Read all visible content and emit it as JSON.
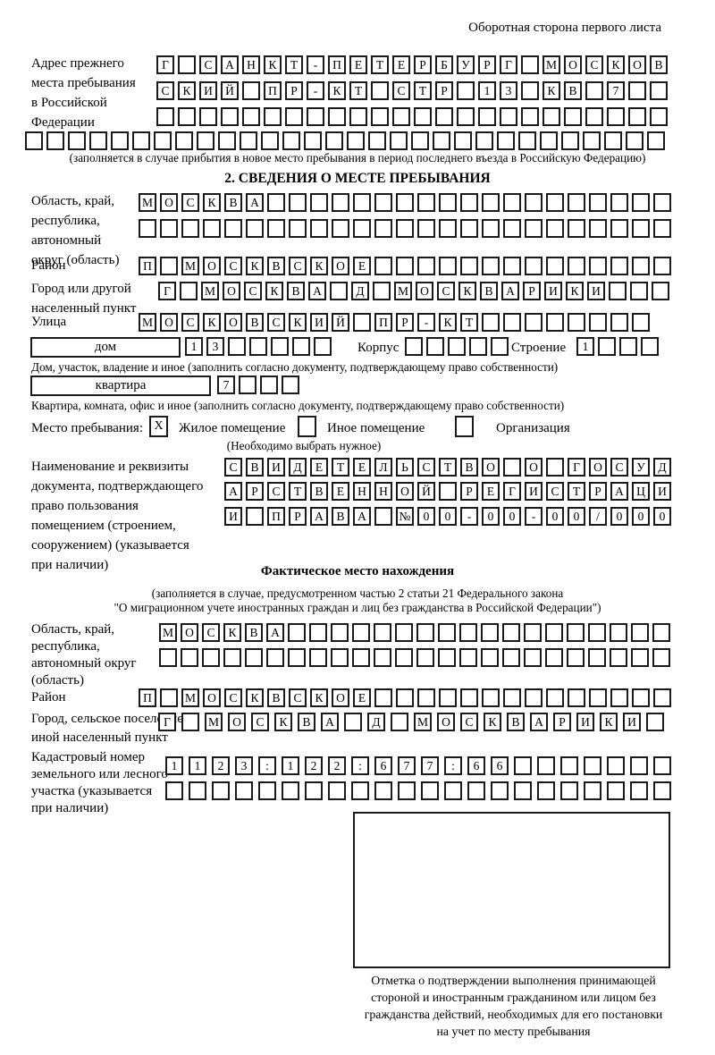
{
  "colors": {
    "ink": "#000000",
    "box_border": "#1a1a1a",
    "background": "#ffffff"
  },
  "page": {
    "header_note": "Оборотная сторона первого листа"
  },
  "prev_address": {
    "label_lines": [
      "Адрес прежнего",
      "места пребывания",
      "в Российской",
      "Федерации"
    ],
    "rows": [
      "Г САНКТ-ПЕТЕРБУРГ МОСКОВ",
      "СКИЙ ПР-КТ СТР 13 КВ 7",
      "",
      ""
    ],
    "caption": "(заполняется в случае прибытия в новое место пребывания в период последнего въезда в Российскую Федерацию)"
  },
  "section2": {
    "title": "2. СВЕДЕНИЯ О МЕСТЕ ПРЕБЫВАНИЯ",
    "region": {
      "label_lines": [
        "Область, край,",
        "республика,",
        "автономный",
        "округ (область)"
      ],
      "rows": [
        "МОСКВА",
        ""
      ]
    },
    "district": {
      "label": "Район",
      "row": "П МОСКВСКОЕ"
    },
    "city": {
      "label_lines": [
        "Город или другой",
        "населенный пункт"
      ],
      "row": "Г МОСКВА Д МОСКВАРИКИ"
    },
    "street": {
      "label": "Улица",
      "row": "МОСКОВСКИЙ ПР-КТ"
    },
    "house": {
      "box_label": "дом",
      "number_cells": "13",
      "korpus_label": "Корпус",
      "korpus_cells": "",
      "stroenie_label": "Строение",
      "stroenie_cells": "1"
    },
    "house_caption": "Дом, участок, владение и иное (заполнить согласно документу, подтверждающему право собственности)",
    "apartment": {
      "box_label": "квартира",
      "cells": "7"
    },
    "apartment_caption": "Квартира, комната, офис и иное (заполнить согласно документу, подтверждающему право собственности)",
    "stay_type": {
      "label": "Место пребывания:",
      "options": [
        {
          "mark": "X",
          "label": "Жилое помещение"
        },
        {
          "mark": "",
          "label": "Иное помещение"
        },
        {
          "mark": "",
          "label": "Организация"
        }
      ],
      "note": "(Необходимо выбрать нужное)"
    },
    "doc": {
      "label_lines": [
        "Наименование и реквизиты",
        "документа, подтверждающего",
        "право пользования",
        "помещением (строением,",
        "сооружением) (указывается",
        "при наличии)"
      ],
      "rows": [
        "СВИДЕТЕЛЬСТВО О ГОСУД",
        "АРСТВЕННОЙ РЕГИСТРАЦИ",
        "И ПРАВА №00-00-00/000"
      ]
    }
  },
  "actual_location": {
    "title": "Фактическое место нахождения",
    "caption_lines": [
      "(заполняется в случае, предусмотренном частью 2 статьи 21 Федерального закона",
      "\"О миграционном учете иностранных граждан и лиц без гражданства в Российской Федерации\")"
    ],
    "region": {
      "label_lines": [
        "Область, край,",
        "республика,",
        "автономный округ",
        "(область)"
      ],
      "rows": [
        "МОСКВА",
        ""
      ]
    },
    "district": {
      "label": "Район",
      "row": "П МОСКВСКОЕ"
    },
    "city": {
      "label_lines": [
        "Город, сельское поселение,",
        "иной населенный пункт"
      ],
      "row": "Г МОСКВА Д МОСКВАРИКИ"
    },
    "cadastral": {
      "label_lines": [
        "Кадастровый номер",
        "земельного или лесного",
        "участка (указывается",
        "при наличии)"
      ],
      "rows": [
        "1123:122:677:66",
        ""
      ]
    },
    "stamp_caption_lines": [
      "Отметка о подтверждении выполнения принимающей",
      "стороной и иностранным гражданином или лицом без",
      "гражданства действий, необходимых для его постановки",
      "на учет по месту пребывания"
    ]
  }
}
